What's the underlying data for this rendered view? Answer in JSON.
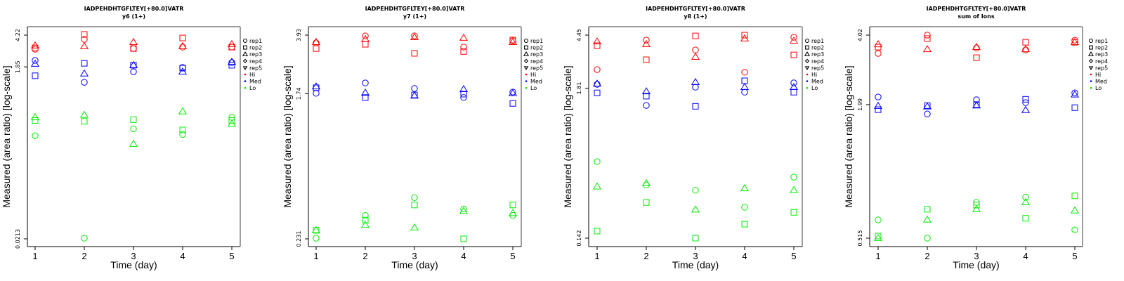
{
  "colors": {
    "Hi": "#ff0000",
    "Med": "#0000ff",
    "Lo": "#00ee00"
  },
  "legend": {
    "entries": [
      {
        "label": "rep1",
        "symbol": "circle"
      },
      {
        "label": "rep2",
        "symbol": "square"
      },
      {
        "label": "rep3",
        "symbol": "triangle"
      },
      {
        "label": "rep4",
        "symbol": "diamond"
      },
      {
        "label": "rep5",
        "symbol": "triangle-down"
      },
      {
        "label": "Hi",
        "symbol": "dot",
        "color": "#ff0000"
      },
      {
        "label": "Med",
        "symbol": "dot",
        "color": "#0000ff"
      },
      {
        "label": "Lo",
        "symbol": "dot",
        "color": "#00ee00"
      }
    ]
  },
  "chart_data": [
    {
      "type": "scatter",
      "title": "IADPEHDHTGFLTEY[+80.0]VATR",
      "subtitle": "y6 (1+)",
      "xlabel": "Time (day)",
      "ylabel": "Measured (area ratio) [log-scale]",
      "x_ticks": [
        "1",
        "2",
        "3",
        "4",
        "5"
      ],
      "y_scale": "log",
      "y_ticks": [
        {
          "label": "4.22",
          "value": 4.22
        },
        {
          "label": "1.85",
          "value": 1.85
        },
        {
          "label": "0.0213",
          "value": 0.0213
        }
      ],
      "ylim": [
        0.0175,
        4.9
      ],
      "series": [
        {
          "group": "Hi",
          "rep": "rep1",
          "x": [
            1,
            2,
            3,
            4,
            5
          ],
          "y": [
            2.93,
            3.78,
            2.98,
            3.09,
            3.09
          ]
        },
        {
          "group": "Hi",
          "rep": "rep2",
          "x": [
            1,
            2,
            3,
            4,
            5
          ],
          "y": [
            3.03,
            4.3,
            2.98,
            3.92,
            3.09
          ]
        },
        {
          "group": "Hi",
          "rep": "rep3",
          "x": [
            1,
            2,
            3,
            4,
            5
          ],
          "y": [
            3.21,
            3.15,
            3.51,
            3.15,
            3.33
          ]
        },
        {
          "group": "Med",
          "rep": "rep1",
          "x": [
            1,
            2,
            3,
            4,
            5
          ],
          "y": [
            2.19,
            1.24,
            1.63,
            1.82,
            2.07
          ]
        },
        {
          "group": "Med",
          "rep": "rep2",
          "x": [
            1,
            2,
            3,
            4,
            5
          ],
          "y": [
            1.47,
            2.03,
            1.93,
            1.79,
            1.93
          ]
        },
        {
          "group": "Med",
          "rep": "rep3",
          "x": [
            1,
            2,
            3,
            4,
            5
          ],
          "y": [
            2.0,
            1.55,
            1.93,
            1.63,
            2.1
          ]
        },
        {
          "group": "Lo",
          "rep": "rep1",
          "x": [
            1,
            2,
            3,
            4,
            5
          ],
          "y": [
            0.31,
            0.0217,
            0.37,
            0.32,
            0.5
          ]
        },
        {
          "group": "Lo",
          "rep": "rep2",
          "x": [
            1,
            2,
            3,
            4,
            5
          ],
          "y": [
            0.46,
            0.45,
            0.47,
            0.36,
            0.46
          ]
        },
        {
          "group": "Lo",
          "rep": "rep3",
          "x": [
            1,
            2,
            3,
            4,
            5
          ],
          "y": [
            0.5,
            0.53,
            0.25,
            0.58,
            0.42
          ]
        }
      ]
    },
    {
      "type": "scatter",
      "title": "IADPEHDHTGFLTEY[+80.0]VATR",
      "subtitle": "y7 (1+)",
      "xlabel": "Time (day)",
      "ylabel": "Measured (area ratio) [log-scale]",
      "x_ticks": [
        "1",
        "2",
        "3",
        "4",
        "5"
      ],
      "y_scale": "log",
      "y_ticks": [
        {
          "label": "3.93",
          "value": 3.93
        },
        {
          "label": "1.74",
          "value": 1.74
        },
        {
          "label": "0.231",
          "value": 0.231
        }
      ],
      "ylim": [
        0.21,
        4.35
      ],
      "series": [
        {
          "group": "Hi",
          "rep": "rep1",
          "x": [
            1,
            2,
            3,
            4,
            5
          ],
          "y": [
            3.53,
            3.89,
            3.89,
            3.33,
            3.63
          ]
        },
        {
          "group": "Hi",
          "rep": "rep2",
          "x": [
            1,
            2,
            3,
            4,
            5
          ],
          "y": [
            3.26,
            3.46,
            3.05,
            3.13,
            3.67
          ]
        },
        {
          "group": "Hi",
          "rep": "rep3",
          "x": [
            1,
            2,
            3,
            4,
            5
          ],
          "y": [
            3.56,
            3.71,
            3.81,
            3.78,
            3.56
          ]
        },
        {
          "group": "Med",
          "rep": "rep1",
          "x": [
            1,
            2,
            3,
            4,
            5
          ],
          "y": [
            1.75,
            2.02,
            1.87,
            1.65,
            1.78
          ]
        },
        {
          "group": "Med",
          "rep": "rep2",
          "x": [
            1,
            2,
            3,
            4,
            5
          ],
          "y": [
            1.89,
            1.65,
            1.71,
            1.73,
            1.52
          ]
        },
        {
          "group": "Med",
          "rep": "rep3",
          "x": [
            1,
            2,
            3,
            4,
            5
          ],
          "y": [
            1.92,
            1.76,
            1.69,
            1.85,
            1.75
          ]
        },
        {
          "group": "Lo",
          "rep": "rep1",
          "x": [
            1,
            2,
            3,
            4,
            5
          ],
          "y": [
            0.233,
            0.32,
            0.41,
            0.35,
            0.32
          ]
        },
        {
          "group": "Lo",
          "rep": "rep2",
          "x": [
            1,
            2,
            3,
            4,
            5
          ],
          "y": [
            0.26,
            0.3,
            0.37,
            0.231,
            0.37
          ]
        },
        {
          "group": "Lo",
          "rep": "rep3",
          "x": [
            1,
            2,
            3,
            4,
            5
          ],
          "y": [
            0.26,
            0.28,
            0.27,
            0.34,
            0.33
          ]
        }
      ]
    },
    {
      "type": "scatter",
      "title": "IADPEHDHTGFLTEY[+80.0]VATR",
      "subtitle": "y8 (1+)",
      "xlabel": "Time (day)",
      "ylabel": "Measured (area ratio) [log-scale]",
      "x_ticks": [
        "1",
        "2",
        "3",
        "4",
        "5"
      ],
      "y_scale": "log",
      "y_ticks": [
        {
          "label": "4.45",
          "value": 4.45
        },
        {
          "label": "1.81",
          "value": 1.81
        },
        {
          "label": "0.142",
          "value": 0.142
        }
      ],
      "ylim": [
        0.125,
        5.0
      ],
      "series": [
        {
          "group": "Hi",
          "rep": "rep1",
          "x": [
            1,
            2,
            3,
            4,
            5
          ],
          "y": [
            2.48,
            4.09,
            3.46,
            2.37,
            4.29
          ]
        },
        {
          "group": "Hi",
          "rep": "rep2",
          "x": [
            1,
            2,
            3,
            4,
            5
          ],
          "y": [
            3.72,
            2.93,
            4.39,
            4.45,
            3.18
          ]
        },
        {
          "group": "Hi",
          "rep": "rep3",
          "x": [
            1,
            2,
            3,
            4,
            5
          ],
          "y": [
            3.99,
            3.81,
            3.07,
            4.19,
            4.04
          ]
        },
        {
          "group": "Med",
          "rep": "rep1",
          "x": [
            1,
            2,
            3,
            4,
            5
          ],
          "y": [
            1.93,
            1.35,
            1.84,
            1.69,
            1.98
          ]
        },
        {
          "group": "Med",
          "rep": "rep2",
          "x": [
            1,
            2,
            3,
            4,
            5
          ],
          "y": [
            1.67,
            1.58,
            1.33,
            2.05,
            1.69
          ]
        },
        {
          "group": "Med",
          "rep": "rep3",
          "x": [
            1,
            2,
            3,
            4,
            5
          ],
          "y": [
            1.95,
            1.71,
            2.0,
            1.84,
            1.84
          ]
        },
        {
          "group": "Lo",
          "rep": "rep1",
          "x": [
            1,
            2,
            3,
            4,
            5
          ],
          "y": [
            0.52,
            0.35,
            0.32,
            0.24,
            0.4
          ]
        },
        {
          "group": "Lo",
          "rep": "rep2",
          "x": [
            1,
            2,
            3,
            4,
            5
          ],
          "y": [
            0.16,
            0.26,
            0.142,
            0.18,
            0.22
          ]
        },
        {
          "group": "Lo",
          "rep": "rep3",
          "x": [
            1,
            2,
            3,
            4,
            5
          ],
          "y": [
            0.34,
            0.36,
            0.23,
            0.33,
            0.32
          ]
        }
      ]
    },
    {
      "type": "scatter",
      "title": "IADPEHDHTGFLTEY[+80.0]VATR",
      "subtitle": "sum of Ions",
      "xlabel": "Time (day)",
      "ylabel": "Measured (area ratio) [log-scale]",
      "x_ticks": [
        "1",
        "2",
        "3",
        "4",
        "5"
      ],
      "y_scale": "log",
      "y_ticks": [
        {
          "label": "4.02",
          "value": 4.02
        },
        {
          "label": "1.99",
          "value": 1.99
        },
        {
          "label": "0.515",
          "value": 0.515
        }
      ],
      "ylim": [
        0.49,
        4.3
      ],
      "series": [
        {
          "group": "Hi",
          "rep": "rep1",
          "x": [
            1,
            2,
            3,
            4,
            5
          ],
          "y": [
            3.34,
            4.02,
            3.53,
            3.46,
            3.82
          ]
        },
        {
          "group": "Hi",
          "rep": "rep2",
          "x": [
            1,
            2,
            3,
            4,
            5
          ],
          "y": [
            3.56,
            3.88,
            3.2,
            3.74,
            3.74
          ]
        },
        {
          "group": "Hi",
          "rep": "rep3",
          "x": [
            1,
            2,
            3,
            4,
            5
          ],
          "y": [
            3.66,
            3.48,
            3.56,
            3.48,
            3.74
          ]
        },
        {
          "group": "Med",
          "rep": "rep1",
          "x": [
            1,
            2,
            3,
            4,
            5
          ],
          "y": [
            2.15,
            1.81,
            2.09,
            2.03,
            2.24
          ]
        },
        {
          "group": "Med",
          "rep": "rep2",
          "x": [
            1,
            2,
            3,
            4,
            5
          ],
          "y": [
            1.89,
            1.97,
            1.99,
            2.1,
            1.93
          ]
        },
        {
          "group": "Med",
          "rep": "rep3",
          "x": [
            1,
            2,
            3,
            4,
            5
          ],
          "y": [
            1.96,
            1.95,
            1.97,
            1.88,
            2.2
          ]
        },
        {
          "group": "Lo",
          "rep": "rep1",
          "x": [
            1,
            2,
            3,
            4,
            5
          ],
          "y": [
            0.62,
            0.515,
            0.74,
            0.78,
            0.56
          ]
        },
        {
          "group": "Lo",
          "rep": "rep2",
          "x": [
            1,
            2,
            3,
            4,
            5
          ],
          "y": [
            0.526,
            0.69,
            0.72,
            0.63,
            0.79
          ]
        },
        {
          "group": "Lo",
          "rep": "rep3",
          "x": [
            1,
            2,
            3,
            4,
            5
          ],
          "y": [
            0.515,
            0.62,
            0.69,
            0.74,
            0.68
          ]
        }
      ]
    }
  ]
}
